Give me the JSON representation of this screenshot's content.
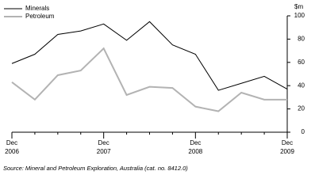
{
  "chart_data": {
    "type": "line",
    "y_unit": "$m",
    "categories": [
      "Dec 2006",
      null,
      null,
      null,
      "Dec 2007",
      null,
      null,
      null,
      "Dec 2008",
      null,
      null,
      null,
      "Dec 2009"
    ],
    "series": [
      {
        "name": "Minerals",
        "color": "#000000",
        "values": [
          59,
          67,
          84,
          87,
          93,
          79,
          95,
          75,
          67,
          36,
          42,
          48,
          37
        ]
      },
      {
        "name": "Petroleum",
        "color": "#b3b3b3",
        "values": [
          43,
          28,
          49,
          53,
          72,
          32,
          39,
          38,
          22,
          18,
          34,
          28,
          28
        ]
      }
    ],
    "ylim": [
      0,
      100
    ],
    "yticks": [
      0,
      20,
      40,
      60,
      80,
      100
    ],
    "legend": "top-left",
    "source": "Source: Mineral and Petroleum Exploration, Australia (cat. no. 8412.0)"
  }
}
